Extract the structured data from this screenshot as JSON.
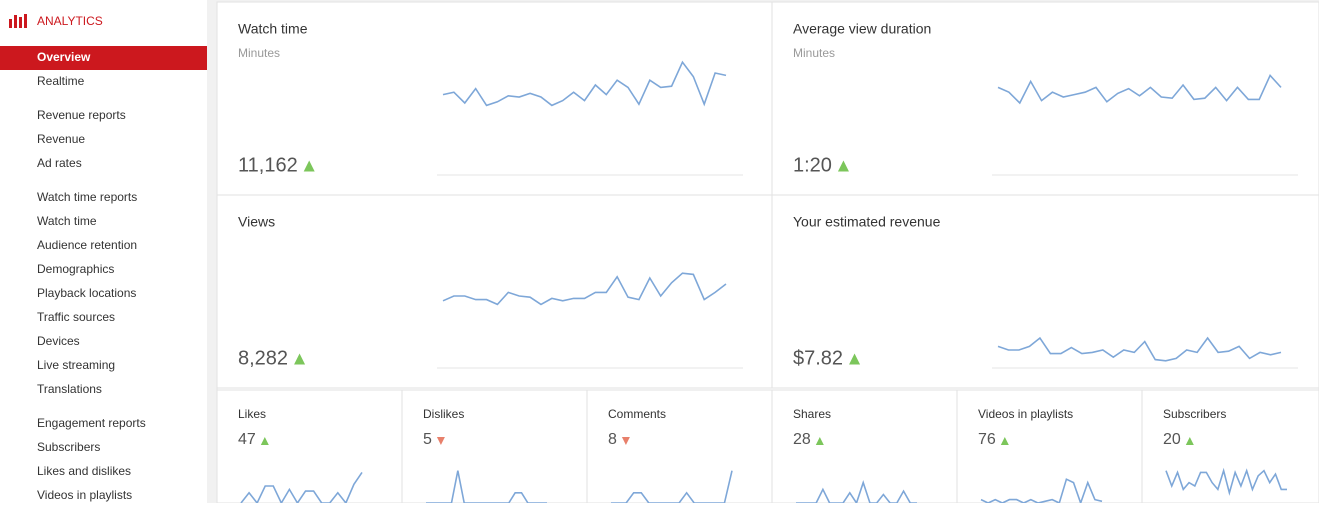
{
  "sidebar": {
    "title": "ANALYTICS",
    "groups": [
      [
        {
          "label": "Overview",
          "active": true
        },
        {
          "label": "Realtime"
        }
      ],
      [
        {
          "label": "Revenue reports"
        },
        {
          "label": "Revenue"
        },
        {
          "label": "Ad rates"
        }
      ],
      [
        {
          "label": "Watch time reports"
        },
        {
          "label": "Watch time"
        },
        {
          "label": "Audience retention"
        },
        {
          "label": "Demographics"
        },
        {
          "label": "Playback locations"
        },
        {
          "label": "Traffic sources"
        },
        {
          "label": "Devices"
        },
        {
          "label": "Live streaming"
        },
        {
          "label": "Translations"
        }
      ],
      [
        {
          "label": "Engagement reports"
        },
        {
          "label": "Subscribers"
        },
        {
          "label": "Likes and dislikes"
        },
        {
          "label": "Videos in playlists"
        }
      ]
    ]
  },
  "cards": [
    {
      "title": "Watch time",
      "subtitle": "Minutes",
      "value": "11,162",
      "trend": "up",
      "sparkline": [
        67,
        69,
        60,
        72,
        58,
        61,
        66,
        65,
        68,
        65,
        58,
        62,
        69,
        62,
        75,
        67,
        79,
        73,
        59,
        79,
        73,
        74,
        94,
        82,
        59,
        85,
        83
      ]
    },
    {
      "title": "Average view duration",
      "subtitle": "Minutes",
      "value": "1:20",
      "trend": "up",
      "sparkline": [
        73,
        69,
        60,
        78,
        62,
        69,
        65,
        67,
        69,
        73,
        61,
        68,
        72,
        66,
        73,
        65,
        64,
        75,
        63,
        64,
        73,
        62,
        73,
        63,
        63,
        83,
        73
      ]
    },
    {
      "title": "Views",
      "value": "8,282",
      "trend": "up",
      "sparkline": [
        56,
        60,
        60,
        57,
        57,
        53,
        63,
        60,
        59,
        53,
        58,
        56,
        58,
        58,
        63,
        63,
        76,
        59,
        57,
        75,
        60,
        71,
        79,
        78,
        57,
        63,
        70
      ]
    },
    {
      "title": "Your estimated revenue",
      "value": "$7.82",
      "trend": "up",
      "sparkline": [
        18,
        15,
        15,
        18,
        25,
        12,
        12,
        17,
        12,
        13,
        15,
        9,
        15,
        13,
        22,
        7,
        6,
        8,
        15,
        13,
        25,
        13,
        14,
        18,
        8,
        13,
        11,
        13
      ]
    }
  ],
  "small_cards": [
    {
      "title": "Likes",
      "value": "47",
      "trend": "up",
      "sparkline": [
        0,
        30,
        0,
        50,
        50,
        0,
        40,
        0,
        35,
        35,
        0,
        0,
        30,
        0,
        55,
        90
      ]
    },
    {
      "title": "Dislikes",
      "value": "5",
      "trend": "down",
      "sparkline": [
        0,
        0,
        0,
        0,
        0,
        95,
        0,
        0,
        0,
        0,
        0,
        0,
        0,
        0,
        30,
        30,
        0,
        0,
        0,
        0
      ]
    },
    {
      "title": "Comments",
      "value": "8",
      "trend": "down",
      "sparkline": [
        0,
        0,
        0,
        30,
        30,
        0,
        0,
        0,
        0,
        0,
        30,
        0,
        0,
        0,
        0,
        0,
        95
      ]
    },
    {
      "title": "Shares",
      "value": "28",
      "trend": "up",
      "sparkline": [
        0,
        0,
        0,
        0,
        40,
        0,
        0,
        0,
        30,
        0,
        60,
        0,
        0,
        25,
        0,
        0,
        35,
        0,
        0
      ]
    },
    {
      "title": "Videos in playlists",
      "value": "76",
      "trend": "up",
      "sparkline": [
        10,
        0,
        10,
        0,
        10,
        10,
        0,
        10,
        0,
        5,
        10,
        0,
        70,
        60,
        0,
        60,
        10,
        5
      ]
    },
    {
      "title": "Subscribers",
      "value": "20",
      "trend": "up",
      "sparkline": [
        95,
        50,
        90,
        40,
        60,
        50,
        90,
        90,
        60,
        40,
        95,
        30,
        90,
        50,
        95,
        40,
        80,
        95,
        60,
        85,
        40,
        40
      ]
    }
  ]
}
